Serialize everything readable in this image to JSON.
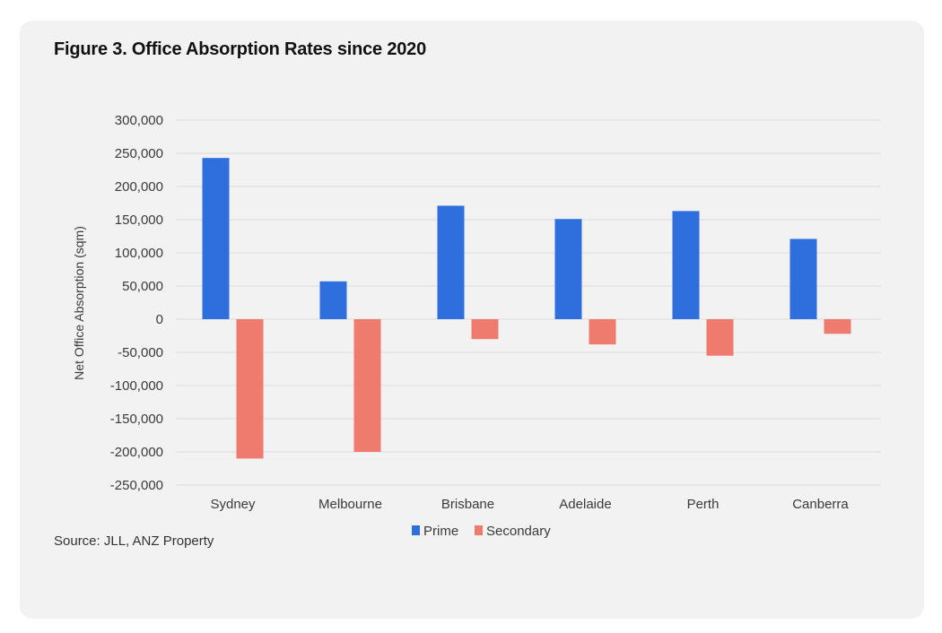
{
  "figure": {
    "title": "Figure 3. Office Absorption Rates since 2020",
    "source": "Source: JLL, ANZ Property"
  },
  "colors": {
    "card_background": "#f2f2f2",
    "prime": "#2f6fdd",
    "secondary": "#ee7b6e",
    "gridline": "#dcdcdc"
  },
  "chart_data": {
    "type": "bar",
    "title": "Figure 3. Office Absorption Rates since 2020",
    "xlabel": "",
    "ylabel": "Net Office Absorption (sqm)",
    "categories": [
      "Sydney",
      "Melbourne",
      "Brisbane",
      "Adelaide",
      "Perth",
      "Canberra"
    ],
    "series": [
      {
        "name": "Prime",
        "color": "#2f6fdd",
        "values": [
          243000,
          57000,
          171000,
          151000,
          163000,
          121000
        ]
      },
      {
        "name": "Secondary",
        "color": "#ee7b6e",
        "values": [
          -210000,
          -200000,
          -30000,
          -38000,
          -55000,
          -22000
        ]
      }
    ],
    "ylim": [
      -250000,
      300000
    ],
    "yticks": [
      300000,
      250000,
      200000,
      150000,
      100000,
      50000,
      0,
      -50000,
      -100000,
      -150000,
      -200000,
      -250000
    ],
    "ytick_labels": [
      "300,000",
      "250,000",
      "200,000",
      "150,000",
      "100,000",
      "50,000",
      "0",
      "-50,000",
      "-100,000",
      "-150,000",
      "-200,000",
      "-250,000"
    ],
    "grid": true,
    "legend": {
      "position": "bottom-center",
      "entries": [
        "Prime",
        "Secondary"
      ]
    },
    "source": "Source: JLL, ANZ Property"
  }
}
